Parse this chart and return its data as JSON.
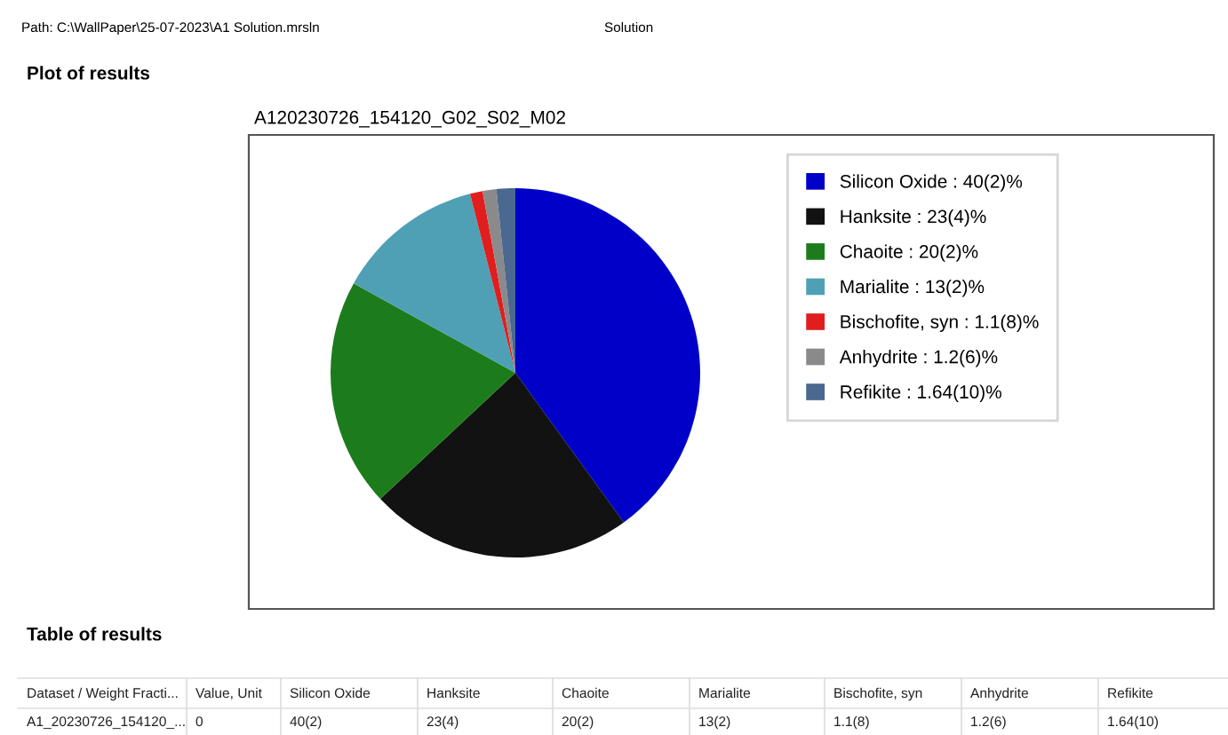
{
  "chart_data": {
    "type": "pie",
    "title": "A120230726_154120_G02_S02_M02",
    "categories": [
      "Silicon Oxide : 40(2)%",
      "Hanksite : 23(4)%",
      "Chaoite : 20(2)%",
      "Marialite : 13(2)%",
      "Bischofite, syn : 1.1(8)%",
      "Anhydrite : 1.2(6)%",
      "Refikite : 1.64(10)%"
    ],
    "values": [
      40,
      23,
      20,
      13,
      1.1,
      1.2,
      1.64
    ],
    "colors": [
      "#0000c8",
      "#121212",
      "#1c7c1c",
      "#4fa0b4",
      "#e01e1e",
      "#8a8a8a",
      "#4a6890"
    ],
    "legend": "right",
    "annotations": [
      "Path: C:\\WallPaper\\25-07-2023\\A1 Solution.mrsln",
      "Solution",
      "Plot of results",
      "Table of results",
      "Dataset / Weight Fracti...",
      "Value, Unit",
      "Silicon Oxide",
      "Hanksite",
      "Chaoite",
      "Marialite",
      "Bischofite, syn",
      "Anhydrite",
      "Refikite",
      "A1_20230726_154120_...",
      "0",
      "40(2)",
      "23(4)",
      "20(2)",
      "13(2)",
      "1.1(8)",
      "1.2(6)",
      "1.64(10)"
    ]
  }
}
